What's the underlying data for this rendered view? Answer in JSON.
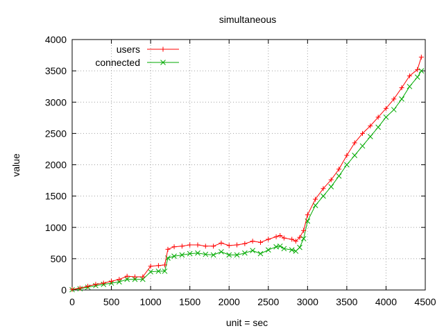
{
  "chart_data": {
    "type": "line",
    "title": "simultaneous",
    "xlabel": "unit = sec",
    "ylabel": "value",
    "xlim": [
      0,
      4500
    ],
    "ylim": [
      0,
      4000
    ],
    "x_ticks": [
      0,
      500,
      1000,
      1500,
      2000,
      2500,
      3000,
      3500,
      4000,
      4500
    ],
    "y_ticks": [
      0,
      500,
      1000,
      1500,
      2000,
      2500,
      3000,
      3500,
      4000
    ],
    "grid": true,
    "legend_position": "top-left",
    "x": [
      0,
      100,
      200,
      300,
      400,
      500,
      600,
      700,
      800,
      900,
      1000,
      1100,
      1180,
      1220,
      1300,
      1400,
      1500,
      1600,
      1700,
      1800,
      1900,
      2000,
      2100,
      2200,
      2300,
      2400,
      2500,
      2600,
      2650,
      2700,
      2800,
      2850,
      2900,
      2950,
      3000,
      3100,
      3200,
      3300,
      3400,
      3500,
      3600,
      3700,
      3800,
      3900,
      4000,
      4100,
      4200,
      4300,
      4400,
      4450
    ],
    "series": [
      {
        "name": "users",
        "color": "#ff0000",
        "marker": "plus",
        "values": [
          10,
          30,
          60,
          90,
          110,
          140,
          170,
          220,
          210,
          210,
          380,
          390,
          400,
          650,
          690,
          700,
          720,
          720,
          700,
          700,
          750,
          710,
          720,
          740,
          780,
          760,
          810,
          850,
          870,
          830,
          810,
          780,
          840,
          950,
          1200,
          1450,
          1620,
          1760,
          1930,
          2150,
          2350,
          2500,
          2620,
          2760,
          2900,
          3050,
          3230,
          3420,
          3520,
          3720
        ]
      },
      {
        "name": "connected",
        "color": "#00aa00",
        "marker": "x",
        "values": [
          5,
          20,
          45,
          70,
          90,
          110,
          130,
          170,
          170,
          170,
          290,
          300,
          300,
          510,
          540,
          560,
          580,
          590,
          570,
          560,
          610,
          560,
          560,
          590,
          630,
          580,
          640,
          690,
          700,
          660,
          640,
          620,
          680,
          820,
          1100,
          1350,
          1500,
          1650,
          1820,
          2000,
          2150,
          2300,
          2450,
          2600,
          2760,
          2880,
          3050,
          3250,
          3400,
          3500
        ]
      }
    ]
  }
}
